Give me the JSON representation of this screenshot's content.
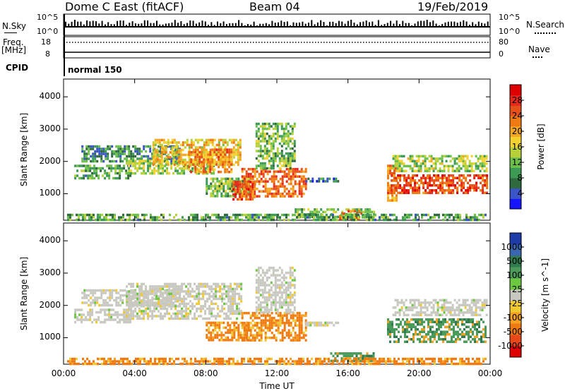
{
  "header": {
    "station": "Dome C East (fitACF)",
    "beam": "Beam 04",
    "date": "19/Feb/2019"
  },
  "top_panel": {
    "nsky_label": "N.Sky",
    "nsky_ticks": [
      "10^5",
      "10^0"
    ],
    "nsearch_label": "N.Search",
    "nsearch_ticks": [
      "10^5",
      "10^0"
    ],
    "freq_label": "Freq.",
    "freq_unit": "[MHz]",
    "freq_ticks": [
      "18",
      "8"
    ],
    "nave_label": "Nave",
    "nave_ticks": [
      "80",
      "0"
    ],
    "cpid_label": "CPID",
    "cpid_value": "normal 150"
  },
  "chart_data": [
    {
      "type": "heatmap",
      "panel": "power",
      "ylabel": "Slant Range [km]",
      "yticks": [
        1000,
        2000,
        3000,
        4000
      ],
      "ylim": [
        180,
        4550
      ],
      "xlim": [
        0,
        24
      ],
      "colorbar_label": "Power [dB]",
      "colorbar_ticks": [
        4,
        8,
        12,
        16,
        20,
        24,
        28
      ],
      "colorbar_colors": [
        "#1515ff",
        "#3a55c8",
        "#2f6a3e",
        "#3c9a55",
        "#6cc04a",
        "#b8d13a",
        "#f3d12f",
        "#f5a623",
        "#f07a12",
        "#e8501a",
        "#e8281a",
        "#e00000"
      ],
      "regions": [
        {
          "t": [
            0.6,
            3.8
          ],
          "r": [
            1500,
            1900
          ],
          "value": 10
        },
        {
          "t": [
            1.0,
            6.5
          ],
          "r": [
            2000,
            2500
          ],
          "value": 8
        },
        {
          "t": [
            3.5,
            8.5
          ],
          "r": [
            1600,
            2050
          ],
          "value": 14
        },
        {
          "t": [
            5.0,
            10.0
          ],
          "r": [
            1900,
            2700
          ],
          "value": 18
        },
        {
          "t": [
            7.0,
            9.5
          ],
          "r": [
            1700,
            2400
          ],
          "value": 22
        },
        {
          "t": [
            8.0,
            10.5
          ],
          "r": [
            900,
            1500
          ],
          "value": 12
        },
        {
          "t": [
            9.5,
            10.7
          ],
          "r": [
            800,
            1400
          ],
          "value": 26
        },
        {
          "t": [
            10.0,
            13.6
          ],
          "r": [
            900,
            1800
          ],
          "value": 24
        },
        {
          "t": [
            10.8,
            13.0
          ],
          "r": [
            1800,
            3200
          ],
          "value": 12
        },
        {
          "t": [
            13.6,
            15.5
          ],
          "r": [
            1350,
            1500
          ],
          "value": 6
        },
        {
          "t": [
            13.0,
            17.5
          ],
          "r": [
            250,
            550
          ],
          "value": 12
        },
        {
          "t": [
            15.5,
            16.8
          ],
          "r": [
            250,
            500
          ],
          "value": 24
        },
        {
          "t": [
            18.2,
            18.7
          ],
          "r": [
            800,
            1900
          ],
          "value": 22
        },
        {
          "t": [
            18.4,
            23.8
          ],
          "r": [
            1000,
            1600
          ],
          "value": 26
        },
        {
          "t": [
            18.5,
            23.8
          ],
          "r": [
            1700,
            2200
          ],
          "value": 14
        },
        {
          "t": [
            0.2,
            23.8
          ],
          "r": [
            200,
            380
          ],
          "value": 10
        }
      ]
    },
    {
      "type": "heatmap",
      "panel": "velocity",
      "ylabel": "Slant Range [km]",
      "yticks": [
        1000,
        2000,
        3000,
        4000
      ],
      "ylim": [
        180,
        4550
      ],
      "xlim": [
        0,
        24
      ],
      "xlabel": "Time UT",
      "xticks": [
        "00:00",
        "04:00",
        "08:00",
        "12:00",
        "16:00",
        "20:00",
        "00:00"
      ],
      "colorbar_label": "Velocity [m s^-1]",
      "colorbar_ticks": [
        "1000",
        "500",
        "100",
        "25",
        "-25",
        "-100",
        "-500",
        "-1000"
      ],
      "colorbar_colors": [
        "#1e3ca8",
        "#3a66b0",
        "#2f7a4e",
        "#4a9a5a",
        "#6cc840",
        "#c8c8c0",
        "#f0c830",
        "#f5a020",
        "#f07a12",
        "#e84818",
        "#e00000"
      ],
      "regions": [
        {
          "t": [
            0.6,
            3.8
          ],
          "r": [
            1500,
            1900
          ],
          "value": 0
        },
        {
          "t": [
            1.0,
            6.5
          ],
          "r": [
            2000,
            2500
          ],
          "value": 0
        },
        {
          "t": [
            3.5,
            10.0
          ],
          "r": [
            1600,
            2700
          ],
          "value": 0
        },
        {
          "t": [
            8.0,
            10.5
          ],
          "r": [
            900,
            1500
          ],
          "value": -300
        },
        {
          "t": [
            10.0,
            13.6
          ],
          "r": [
            900,
            1800
          ],
          "value": -300
        },
        {
          "t": [
            10.8,
            13.0
          ],
          "r": [
            1800,
            3200
          ],
          "value": 0
        },
        {
          "t": [
            13.6,
            15.5
          ],
          "r": [
            1350,
            1500
          ],
          "value": 0
        },
        {
          "t": [
            15.0,
            17.5
          ],
          "r": [
            250,
            550
          ],
          "value": 50
        },
        {
          "t": [
            18.2,
            23.8
          ],
          "r": [
            900,
            1600
          ],
          "value": 150
        },
        {
          "t": [
            18.5,
            23.8
          ],
          "r": [
            1700,
            2200
          ],
          "value": 0
        },
        {
          "t": [
            0.2,
            23.8
          ],
          "r": [
            200,
            380
          ],
          "value": -60
        }
      ]
    }
  ]
}
